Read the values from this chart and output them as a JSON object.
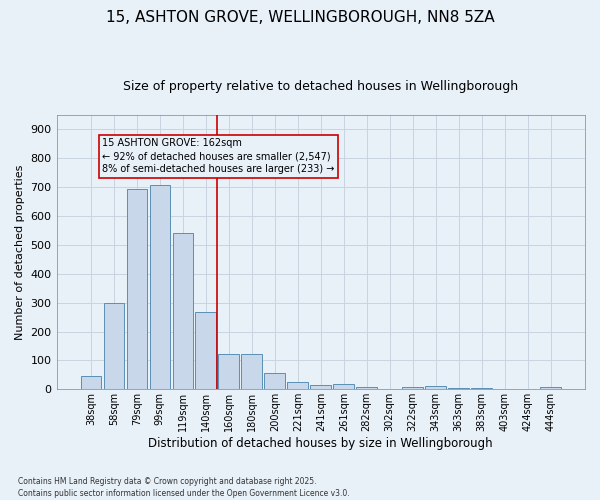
{
  "title1": "15, ASHTON GROVE, WELLINGBOROUGH, NN8 5ZA",
  "title2": "Size of property relative to detached houses in Wellingborough",
  "xlabel": "Distribution of detached houses by size in Wellingborough",
  "ylabel": "Number of detached properties",
  "categories": [
    "38sqm",
    "58sqm",
    "79sqm",
    "99sqm",
    "119sqm",
    "140sqm",
    "160sqm",
    "180sqm",
    "200sqm",
    "221sqm",
    "241sqm",
    "261sqm",
    "282sqm",
    "302sqm",
    "322sqm",
    "343sqm",
    "363sqm",
    "383sqm",
    "403sqm",
    "424sqm",
    "444sqm"
  ],
  "values": [
    45,
    300,
    695,
    707,
    540,
    267,
    122,
    122,
    57,
    25,
    15,
    18,
    8,
    0,
    8,
    10,
    3,
    3,
    2,
    0,
    8
  ],
  "bar_color": "#c8d8ea",
  "bar_edge_color": "#5b8fb5",
  "grid_color": "#c8d4e0",
  "background_color": "#e8f0f8",
  "vline_x_index": 6,
  "vline_color": "#cc0000",
  "annotation_text": "15 ASHTON GROVE: 162sqm\n← 92% of detached houses are smaller (2,547)\n8% of semi-detached houses are larger (233) →",
  "annotation_box_color": "#cc0000",
  "footnote": "Contains HM Land Registry data © Crown copyright and database right 2025.\nContains public sector information licensed under the Open Government Licence v3.0.",
  "ylim": [
    0,
    950
  ],
  "yticks": [
    0,
    100,
    200,
    300,
    400,
    500,
    600,
    700,
    800,
    900
  ],
  "title1_fontsize": 11,
  "title2_fontsize": 9,
  "xlabel_fontsize": 8.5,
  "ylabel_fontsize": 8,
  "tick_fontsize": 7,
  "footnote_fontsize": 5.5
}
